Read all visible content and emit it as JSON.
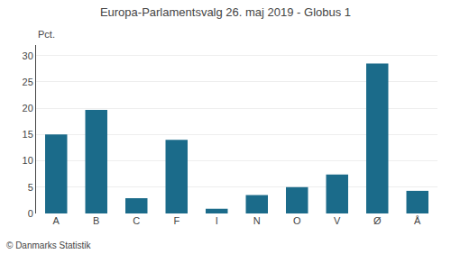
{
  "chart_data": {
    "type": "bar",
    "title": "Europa-Parlamentsvalg 26. maj 2019 - Globus 1",
    "categories": [
      "A",
      "B",
      "C",
      "F",
      "I",
      "N",
      "O",
      "V",
      "Ø",
      "Å"
    ],
    "values": [
      15.0,
      19.7,
      2.9,
      14.0,
      0.9,
      3.5,
      5.0,
      7.4,
      28.5,
      4.3
    ],
    "color": "#1b6b8a",
    "ylabel": "Pct.",
    "annotations": [
      "© Danmarks Statistik"
    ],
    "ylim": [
      0,
      32
    ],
    "yticks": [
      0,
      5,
      10,
      15,
      20,
      25,
      30
    ],
    "grid": true
  }
}
